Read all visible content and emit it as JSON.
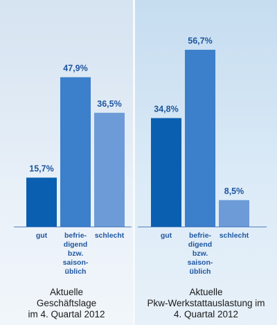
{
  "colors": {
    "gut": "#0a5fb0",
    "befriedigend": "#3c7fcb",
    "schlecht": "#6c9bd8",
    "value_label": "#1e56a0",
    "category_label": "#1e56a0",
    "baseline": "#4f7fbf"
  },
  "chart_data": [
    {
      "type": "bar",
      "caption_lines": [
        "Aktuelle",
        "Geschäftslage",
        "im 4. Quartal 2012"
      ],
      "categories": [
        [
          "gut"
        ],
        [
          "befrie-",
          "digend",
          "bzw.",
          "saison-",
          "üblich"
        ],
        [
          "schlecht"
        ]
      ],
      "values": [
        15.7,
        47.9,
        36.5
      ],
      "value_labels": [
        "15,7%",
        "47,9%",
        "36,5%"
      ],
      "unit": "%"
    },
    {
      "type": "bar",
      "caption_lines": [
        "Aktuelle",
        "Pkw-Werkstattauslastung im",
        "4. Quartal 2012"
      ],
      "categories": [
        [
          "gut"
        ],
        [
          "befrie-",
          "digend",
          "bzw.",
          "saison-",
          "üblich"
        ],
        [
          "schlecht"
        ]
      ],
      "values": [
        34.8,
        56.7,
        8.5
      ],
      "value_labels": [
        "34,8%",
        "56,7%",
        "8,5%"
      ],
      "unit": "%"
    }
  ]
}
